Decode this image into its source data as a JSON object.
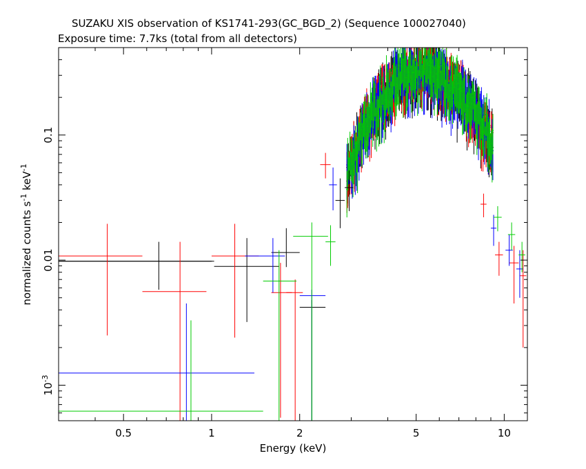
{
  "chart_data": {
    "type": "scatter",
    "title": "SUZAKU XIS observation of KS1741-293(GC_BGD_2) (Sequence 100027040)",
    "subtitle": "Exposure time: 7.7ks (total from all detectors)",
    "xlabel": "Energy (keV)",
    "ylabel_parts": {
      "a": "normalized counts s",
      "sup1": "-1",
      "b": " keV",
      "sup2": "-1"
    },
    "xscale": "log",
    "yscale": "log",
    "xlim": [
      0.3,
      12.0
    ],
    "ylim": [
      0.00052,
      0.5
    ],
    "x_ticks": [
      {
        "value": 0.5,
        "label": "0.5"
      },
      {
        "value": 1,
        "label": "1"
      },
      {
        "value": 2,
        "label": "2"
      },
      {
        "value": 5,
        "label": "5"
      },
      {
        "value": 10,
        "label": "10"
      }
    ],
    "y_ticks": [
      {
        "value": 0.001,
        "label": "10",
        "sup": "-3"
      },
      {
        "value": 0.01,
        "label": "0.01",
        "sup": ""
      },
      {
        "value": 0.1,
        "label": "0.1",
        "sup": ""
      }
    ],
    "series": [
      {
        "color": "#000000",
        "points": [
          {
            "x": 0.48,
            "xlo": 0.3,
            "xhi": 1.0,
            "y": 0.0098,
            "ylo": 0.0098,
            "yhi": 0.0098
          },
          {
            "x": 0.66,
            "xlo": 0.3,
            "xhi": 1.02,
            "y": 0.0098,
            "ylo": 0.0058,
            "yhi": 0.014
          },
          {
            "x": 1.32,
            "xlo": 1.02,
            "xhi": 1.7,
            "y": 0.0089,
            "ylo": 0.0032,
            "yhi": 0.015
          },
          {
            "x": 1.8,
            "xlo": 1.6,
            "xhi": 2.0,
            "y": 0.0115,
            "ylo": 0.0088,
            "yhi": 0.018
          },
          {
            "x": 2.2,
            "xlo": 2.0,
            "xhi": 2.45,
            "y": 0.0042,
            "ylo": 0.0005,
            "yhi": 0.0048
          },
          {
            "x": 2.75,
            "xlo": 2.65,
            "xhi": 2.85,
            "y": 0.03,
            "ylo": 0.018,
            "yhi": 0.045
          },
          {
            "x": 2.95,
            "xlo": 2.85,
            "xhi": 3.05,
            "y": 0.038,
            "ylo": 0.027,
            "yhi": 0.052
          }
        ]
      },
      {
        "color": "#ff0000",
        "points": [
          {
            "x": 0.44,
            "xlo": 0.3,
            "xhi": 0.58,
            "y": 0.0108,
            "ylo": 0.0025,
            "yhi": 0.0195
          },
          {
            "x": 0.78,
            "xlo": 0.58,
            "xhi": 0.96,
            "y": 0.0056,
            "ylo": 0.0005,
            "yhi": 0.014
          },
          {
            "x": 1.2,
            "xlo": 1.0,
            "xhi": 1.45,
            "y": 0.0108,
            "ylo": 0.0024,
            "yhi": 0.0195
          },
          {
            "x": 1.72,
            "xlo": 1.6,
            "xhi": 1.88,
            "y": 0.0055,
            "ylo": 0.00055,
            "yhi": 0.0095
          },
          {
            "x": 1.93,
            "xlo": 1.8,
            "xhi": 2.05,
            "y": 0.0055,
            "ylo": 0.0005,
            "yhi": 0.007
          },
          {
            "x": 2.45,
            "xlo": 2.35,
            "xhi": 2.55,
            "y": 0.058,
            "ylo": 0.045,
            "yhi": 0.072
          },
          {
            "x": 8.5,
            "xlo": 8.3,
            "xhi": 8.7,
            "y": 0.028,
            "ylo": 0.022,
            "yhi": 0.034
          },
          {
            "x": 9.6,
            "xlo": 9.3,
            "xhi": 9.9,
            "y": 0.011,
            "ylo": 0.0075,
            "yhi": 0.014
          },
          {
            "x": 10.8,
            "xlo": 10.4,
            "xhi": 11.2,
            "y": 0.0095,
            "ylo": 0.0045,
            "yhi": 0.013
          },
          {
            "x": 11.6,
            "xlo": 11.3,
            "xhi": 11.9,
            "y": 0.0075,
            "ylo": 0.002,
            "yhi": 0.012
          }
        ]
      },
      {
        "color": "#0000ff",
        "points": [
          {
            "x": 0.82,
            "xlo": 0.3,
            "xhi": 1.4,
            "y": 0.00125,
            "ylo": 0.0005,
            "yhi": 0.0045
          },
          {
            "x": 1.62,
            "xlo": 1.3,
            "xhi": 1.78,
            "y": 0.0108,
            "ylo": 0.0055,
            "yhi": 0.015
          },
          {
            "x": 2.2,
            "xlo": 2.0,
            "xhi": 2.45,
            "y": 0.0052,
            "ylo": 0.0005,
            "yhi": 0.0058
          },
          {
            "x": 2.6,
            "xlo": 2.52,
            "xhi": 2.68,
            "y": 0.04,
            "ylo": 0.025,
            "yhi": 0.055
          },
          {
            "x": 9.2,
            "xlo": 9.0,
            "xhi": 9.4,
            "y": 0.018,
            "ylo": 0.013,
            "yhi": 0.023
          },
          {
            "x": 10.4,
            "xlo": 10.1,
            "xhi": 10.7,
            "y": 0.012,
            "ylo": 0.009,
            "yhi": 0.016
          },
          {
            "x": 11.3,
            "xlo": 11.0,
            "xhi": 11.6,
            "y": 0.0085,
            "ylo": 0.005,
            "yhi": 0.012
          }
        ]
      },
      {
        "color": "#00cc00",
        "points": [
          {
            "x": 0.85,
            "xlo": 0.3,
            "xhi": 1.5,
            "y": 0.00062,
            "ylo": 0.0005,
            "yhi": 0.0033
          },
          {
            "x": 1.7,
            "xlo": 1.5,
            "xhi": 1.95,
            "y": 0.0068,
            "ylo": 0.0005,
            "yhi": 0.012
          },
          {
            "x": 2.2,
            "xlo": 1.9,
            "xhi": 2.5,
            "y": 0.0155,
            "ylo": 0.0005,
            "yhi": 0.02
          },
          {
            "x": 2.55,
            "xlo": 2.45,
            "xhi": 2.65,
            "y": 0.014,
            "ylo": 0.009,
            "yhi": 0.019
          },
          {
            "x": 9.5,
            "xlo": 9.2,
            "xhi": 9.8,
            "y": 0.022,
            "ylo": 0.017,
            "yhi": 0.027
          },
          {
            "x": 10.6,
            "xlo": 10.3,
            "xhi": 10.9,
            "y": 0.016,
            "ylo": 0.012,
            "yhi": 0.02
          },
          {
            "x": 11.5,
            "xlo": 11.2,
            "xhi": 11.8,
            "y": 0.011,
            "ylo": 0.008,
            "yhi": 0.014
          }
        ]
      }
    ]
  }
}
